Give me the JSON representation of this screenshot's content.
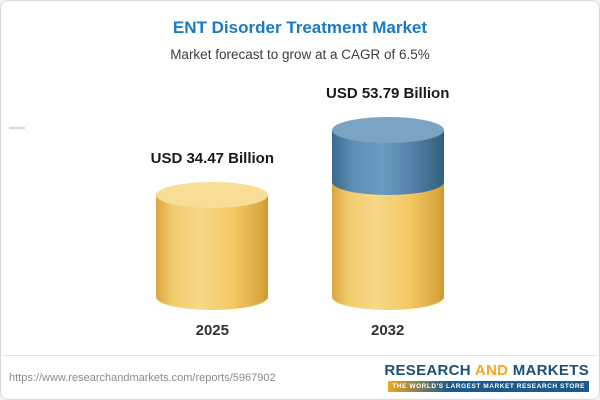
{
  "chart": {
    "title": "ENT Disorder Treatment Market",
    "subtitle": "Market forecast to grow at a CAGR of 6.5%"
  },
  "chart_data": {
    "type": "bar",
    "subtype": "3d-cylinder",
    "categories": [
      "2025",
      "2032"
    ],
    "values": [
      34.47,
      53.79
    ],
    "value_labels": [
      "USD 34.47 Billion",
      "USD 53.79 Billion"
    ],
    "unit": "USD Billion",
    "cagr_percent": 6.5,
    "series_note": "2032 cylinder: gold base equals 2025 value, blue top segment is forecast growth",
    "colors": {
      "gold_body": "#F0C45C",
      "gold_top": "#F7DD95",
      "blue_body": "#527FA6",
      "blue_top": "#7BA4C4",
      "title_blue": "#1B7AC6"
    },
    "legend": "none",
    "grid": false
  },
  "footer": {
    "url": "https://www.researchandmarkets.com/reports/5967902",
    "logo": {
      "research": "RESEARCH ",
      "and": "AND",
      "markets": " MARKETS",
      "tagline": "THE WORLD'S LARGEST MARKET RESEARCH STORE"
    }
  }
}
